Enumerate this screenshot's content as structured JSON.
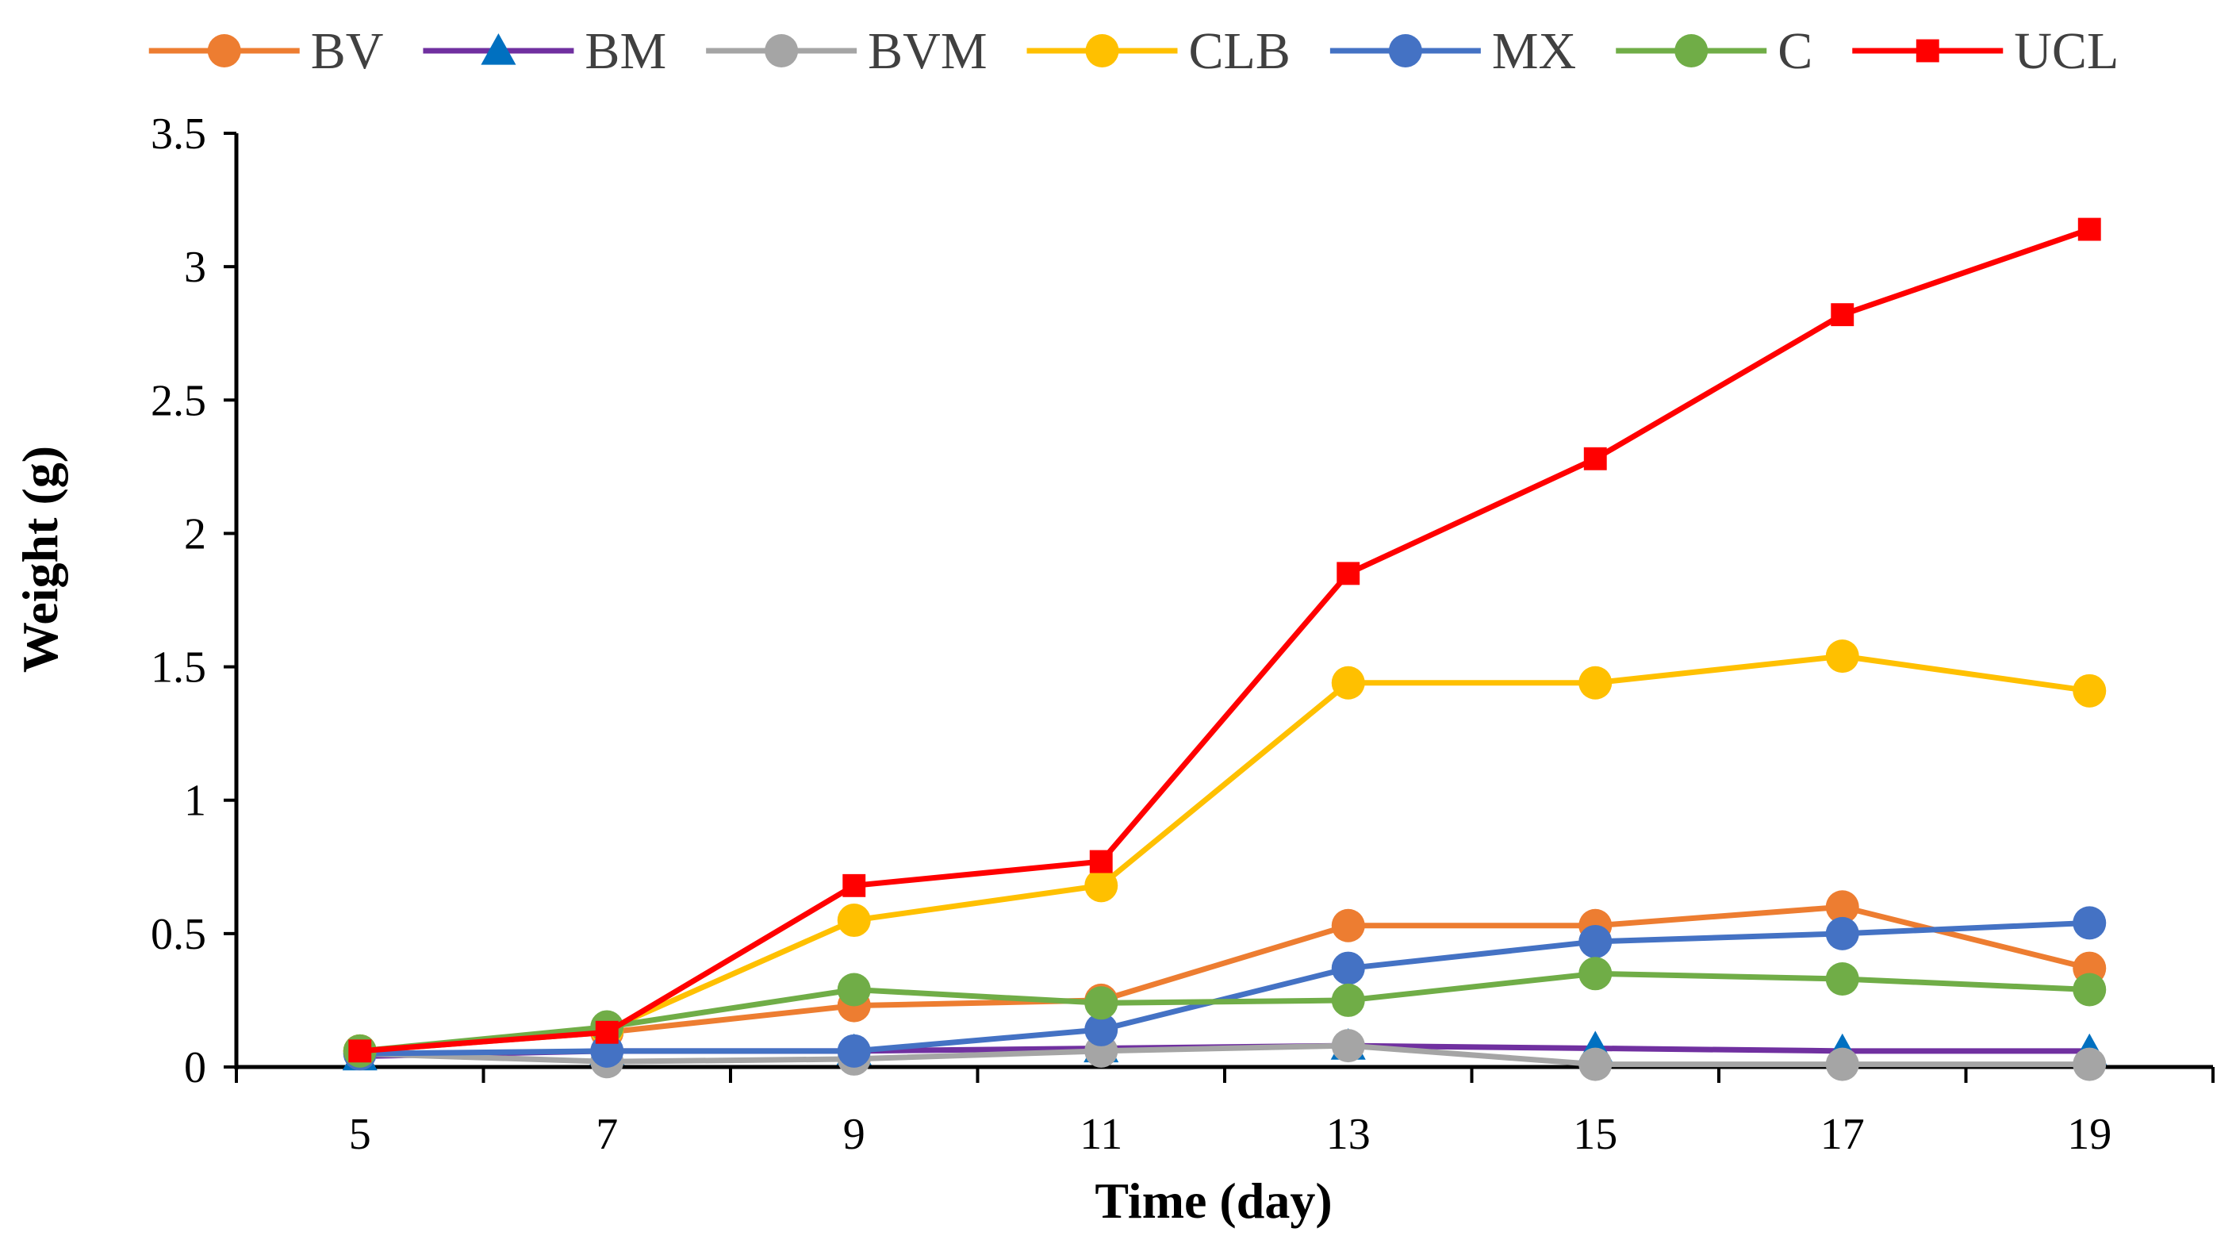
{
  "chart_data": {
    "type": "line",
    "title": "",
    "xlabel": "Time (day)",
    "ylabel": "Weight (g)",
    "x": [
      5,
      7,
      9,
      11,
      13,
      15,
      17,
      19
    ],
    "xlim": [
      4,
      20
    ],
    "ylim": [
      0,
      3.5
    ],
    "yticks": [
      0,
      0.5,
      1,
      1.5,
      2,
      2.5,
      3,
      3.5
    ],
    "ytick_labels": [
      "0",
      "0.5",
      "1",
      "1.5",
      "2",
      "2.5",
      "3",
      "3.5"
    ],
    "xtick_labels": [
      "5",
      "7",
      "9",
      "11",
      "13",
      "15",
      "17",
      "19"
    ],
    "grid": false,
    "legend_position": "top",
    "series": [
      {
        "name": "BV",
        "color": "#ED7D31",
        "marker": "circle",
        "values": [
          0.06,
          0.13,
          0.23,
          0.25,
          0.53,
          0.53,
          0.6,
          0.37
        ]
      },
      {
        "name": "BM",
        "color": "#7030A0",
        "marker": "triangle",
        "marker_color": "#0070C0",
        "values": [
          0.04,
          0.06,
          0.06,
          0.07,
          0.08,
          0.07,
          0.06,
          0.06
        ]
      },
      {
        "name": "BVM",
        "color": "#A5A5A5",
        "marker": "circle",
        "values": [
          0.05,
          0.02,
          0.03,
          0.06,
          0.08,
          0.01,
          0.01,
          0.01
        ]
      },
      {
        "name": "CLB",
        "color": "#FFC000",
        "marker": "circle",
        "values": [
          0.06,
          0.14,
          0.55,
          0.68,
          1.44,
          1.44,
          1.54,
          1.41
        ]
      },
      {
        "name": "MX",
        "color": "#4472C4",
        "marker": "circle",
        "values": [
          0.05,
          0.06,
          0.06,
          0.14,
          0.37,
          0.47,
          0.5,
          0.54
        ]
      },
      {
        "name": "C",
        "color": "#70AD47",
        "marker": "circle",
        "values": [
          0.06,
          0.15,
          0.29,
          0.24,
          0.25,
          0.35,
          0.33,
          0.29
        ]
      },
      {
        "name": "UCL",
        "color": "#FF0000",
        "marker": "square",
        "values": [
          0.06,
          0.13,
          0.68,
          0.77,
          1.85,
          2.28,
          2.82,
          3.14
        ]
      }
    ]
  }
}
